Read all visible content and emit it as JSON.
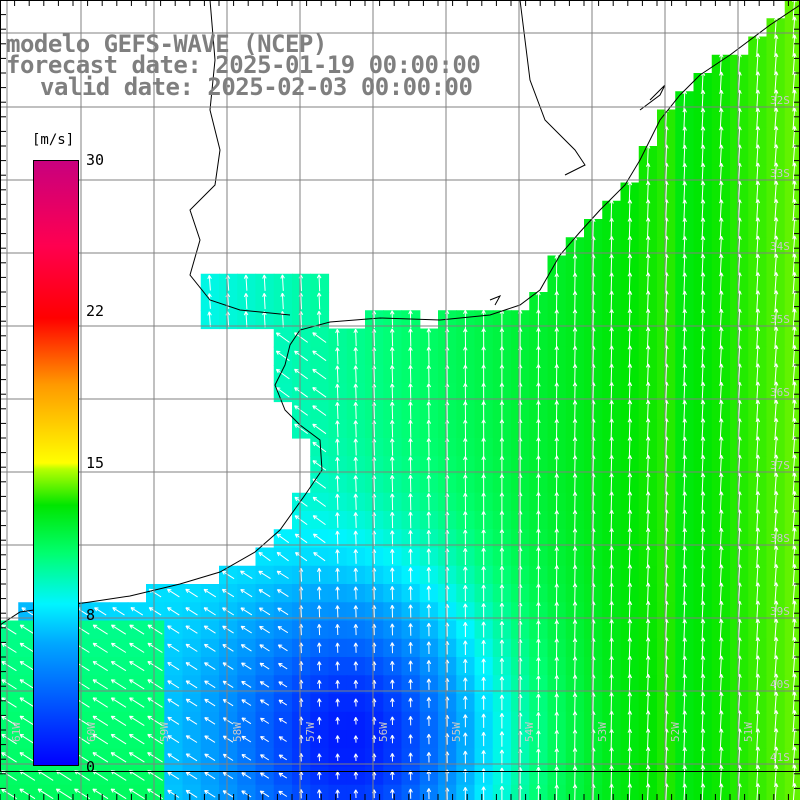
{
  "header": {
    "line1": "modelo GEFS-WAVE (NCEP)",
    "line2": "forecast date: 2025-01-19 00:00:00",
    "line3": "valid date: 2025-02-03 00:00:00"
  },
  "colorbar": {
    "unit": "[m/s]",
    "ticks": [
      {
        "value": 30,
        "label": "30"
      },
      {
        "value": 22,
        "label": "22"
      },
      {
        "value": 15,
        "label": "15"
      },
      {
        "value": 8,
        "label": "8"
      },
      {
        "value": 0,
        "label": "0"
      }
    ],
    "range": [
      0,
      30
    ]
  },
  "axes": {
    "lon_labels": [
      "61W",
      "60W",
      "59W",
      "58W",
      "57W",
      "56W",
      "55W",
      "54W",
      "53W",
      "52W",
      "51W"
    ],
    "lat_labels": [
      "32S",
      "33S",
      "34S",
      "35S",
      "36S",
      "37S",
      "38S",
      "39S",
      "40S",
      "41S"
    ]
  },
  "colors": {
    "land": "#ffffff",
    "grid": "#808080",
    "coast": "#000000",
    "arrow": "#ffffff",
    "title": "#7f7f7f"
  }
}
